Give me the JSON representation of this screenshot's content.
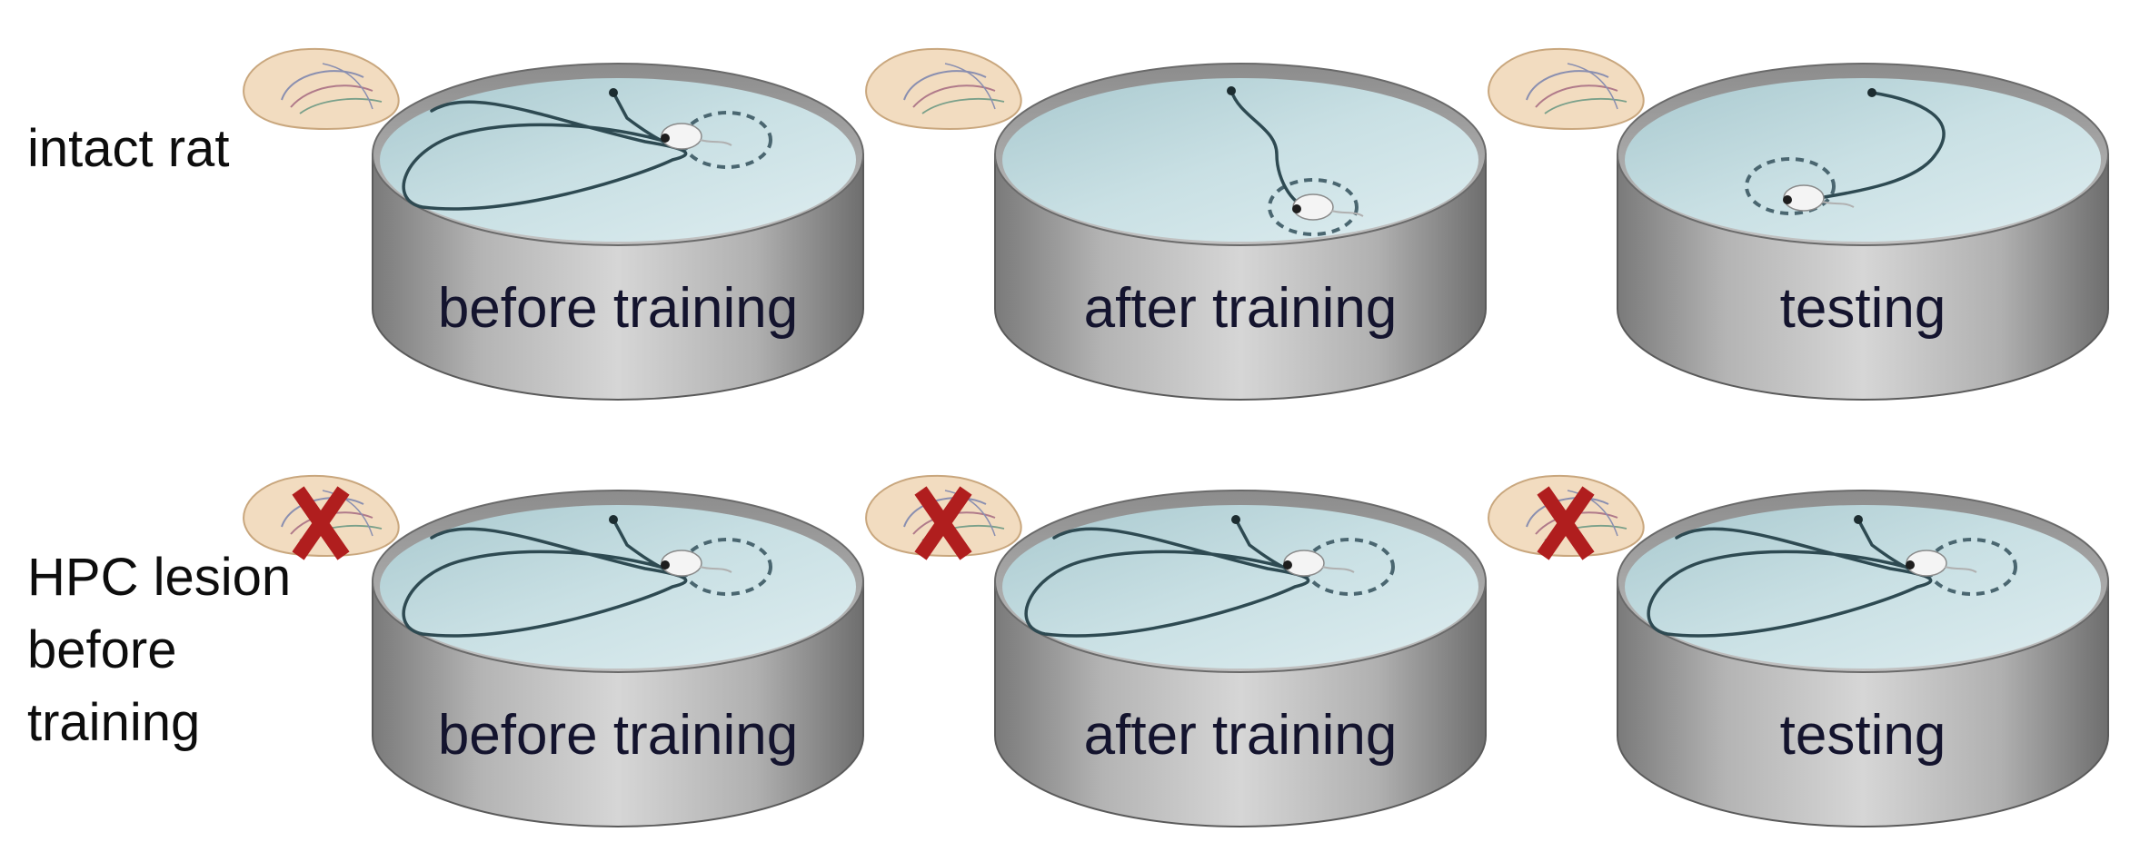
{
  "rows": [
    {
      "label": "intact rat",
      "condition": "intact",
      "tanks": [
        {
          "caption": "before training",
          "path": "searching"
        },
        {
          "caption": "after training",
          "path": "direct"
        },
        {
          "caption": "testing",
          "path": "direct"
        }
      ]
    },
    {
      "label_lines": [
        "HPC lesion",
        "before",
        "training"
      ],
      "condition": "lesioned",
      "tanks": [
        {
          "caption": "before training",
          "path": "searching"
        },
        {
          "caption": "after training",
          "path": "searching"
        },
        {
          "caption": "testing",
          "path": "searching"
        }
      ]
    }
  ],
  "icons": {
    "brain": "rat-brain-icon",
    "lesion_mark": "lesion-x-icon"
  },
  "colors": {
    "water": "#c4dde2",
    "tank_wall": "#9a9a9a",
    "path": "#2e4a52",
    "platform": "#4a6670",
    "lesion_x": "#b01e1e",
    "brain": "#f2dcc0",
    "text": "#14142e"
  }
}
